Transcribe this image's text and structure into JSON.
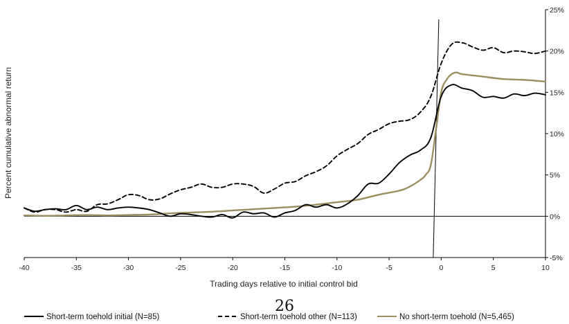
{
  "page_number": "26",
  "chart_data": {
    "type": "line",
    "title": "",
    "xlabel": "Trading days relative to initial control bid",
    "ylabel": "Percent cumulative abnormal return",
    "xlim": [
      -40,
      10
    ],
    "ylim": [
      -5,
      25
    ],
    "x_ticks": [
      -40,
      -35,
      -30,
      -25,
      -20,
      -15,
      -10,
      -5,
      0,
      5,
      10
    ],
    "x_tick_labels": [
      "-40",
      "-35",
      "-30",
      "-25",
      "-20",
      "-15",
      "-10",
      "-5",
      "0",
      "5",
      "10"
    ],
    "y_ticks": [
      -5,
      0,
      5,
      10,
      15,
      20,
      25
    ],
    "y_tick_labels": [
      "-5%",
      "0%",
      "5%",
      "10%",
      "15%",
      "20%",
      "25%"
    ],
    "y_axis_side": "right",
    "grid": false,
    "legend_position": "bottom",
    "event_line_x": -0.5,
    "series": [
      {
        "name": "Short-term toehold initial (N=85)",
        "style": "solid",
        "color": "#000000",
        "points": [
          [
            -40,
            1.0
          ],
          [
            -39,
            0.6
          ],
          [
            -38,
            0.8
          ],
          [
            -37,
            0.9
          ],
          [
            -36,
            0.8
          ],
          [
            -35,
            1.3
          ],
          [
            -34,
            0.8
          ],
          [
            -33,
            1.1
          ],
          [
            -32,
            0.8
          ],
          [
            -31,
            1.0
          ],
          [
            -30,
            1.1
          ],
          [
            -29,
            1.0
          ],
          [
            -28,
            0.8
          ],
          [
            -27,
            0.4
          ],
          [
            -26,
            0.0
          ],
          [
            -25,
            0.3
          ],
          [
            -24,
            0.2
          ],
          [
            -23,
            0.0
          ],
          [
            -22,
            -0.1
          ],
          [
            -21,
            0.2
          ],
          [
            -20,
            -0.2
          ],
          [
            -19,
            0.5
          ],
          [
            -18,
            0.3
          ],
          [
            -17,
            0.4
          ],
          [
            -16,
            -0.1
          ],
          [
            -15,
            0.4
          ],
          [
            -14,
            0.7
          ],
          [
            -13,
            1.4
          ],
          [
            -12,
            1.1
          ],
          [
            -11,
            1.4
          ],
          [
            -10,
            1.0
          ],
          [
            -9,
            1.5
          ],
          [
            -8,
            2.5
          ],
          [
            -7,
            3.9
          ],
          [
            -6,
            4.0
          ],
          [
            -5,
            5.1
          ],
          [
            -4,
            6.5
          ],
          [
            -3,
            7.4
          ],
          [
            -2,
            8.0
          ],
          [
            -1,
            9.5
          ],
          [
            0,
            14.5
          ],
          [
            1,
            15.9
          ],
          [
            2,
            15.5
          ],
          [
            3,
            15.2
          ],
          [
            4,
            14.4
          ],
          [
            5,
            14.5
          ],
          [
            6,
            14.3
          ],
          [
            7,
            14.8
          ],
          [
            8,
            14.6
          ],
          [
            9,
            14.9
          ],
          [
            10,
            14.7
          ]
        ]
      },
      {
        "name": "Short-term toehold other (N=113)",
        "style": "dashed",
        "color": "#000000",
        "points": [
          [
            -40,
            1.0
          ],
          [
            -39,
            0.5
          ],
          [
            -38,
            0.8
          ],
          [
            -37,
            0.8
          ],
          [
            -36,
            0.5
          ],
          [
            -35,
            0.8
          ],
          [
            -34,
            0.6
          ],
          [
            -33,
            1.4
          ],
          [
            -32,
            1.5
          ],
          [
            -31,
            2.0
          ],
          [
            -30,
            2.6
          ],
          [
            -29,
            2.5
          ],
          [
            -28,
            2.0
          ],
          [
            -27,
            2.1
          ],
          [
            -26,
            2.7
          ],
          [
            -25,
            3.2
          ],
          [
            -24,
            3.5
          ],
          [
            -23,
            3.9
          ],
          [
            -22,
            3.5
          ],
          [
            -21,
            3.5
          ],
          [
            -20,
            3.9
          ],
          [
            -19,
            3.9
          ],
          [
            -18,
            3.6
          ],
          [
            -17,
            2.8
          ],
          [
            -16,
            3.3
          ],
          [
            -15,
            4.0
          ],
          [
            -14,
            4.2
          ],
          [
            -13,
            4.9
          ],
          [
            -12,
            5.4
          ],
          [
            -11,
            6.1
          ],
          [
            -10,
            7.3
          ],
          [
            -9,
            8.1
          ],
          [
            -8,
            8.8
          ],
          [
            -7,
            9.9
          ],
          [
            -6,
            10.5
          ],
          [
            -5,
            11.2
          ],
          [
            -4,
            11.5
          ],
          [
            -3,
            11.7
          ],
          [
            -2,
            12.6
          ],
          [
            -1,
            14.5
          ],
          [
            0,
            18.5
          ],
          [
            1,
            20.8
          ],
          [
            2,
            21.0
          ],
          [
            3,
            20.5
          ],
          [
            4,
            20.1
          ],
          [
            5,
            20.4
          ],
          [
            6,
            19.8
          ],
          [
            7,
            20.0
          ],
          [
            8,
            19.9
          ],
          [
            9,
            19.7
          ],
          [
            10,
            20.0
          ]
        ]
      },
      {
        "name": "No short-term toehold (N=5,465)",
        "style": "solid",
        "color": "#9a8f5f",
        "points": [
          [
            -40,
            0.1
          ],
          [
            -38,
            0.05
          ],
          [
            -36,
            0.1
          ],
          [
            -34,
            0.15
          ],
          [
            -32,
            0.1
          ],
          [
            -30,
            0.15
          ],
          [
            -28,
            0.2
          ],
          [
            -26,
            0.35
          ],
          [
            -24,
            0.45
          ],
          [
            -22,
            0.55
          ],
          [
            -20,
            0.7
          ],
          [
            -18,
            0.85
          ],
          [
            -16,
            1.0
          ],
          [
            -14,
            1.15
          ],
          [
            -12,
            1.4
          ],
          [
            -10,
            1.7
          ],
          [
            -8,
            2.0
          ],
          [
            -6,
            2.6
          ],
          [
            -4,
            3.1
          ],
          [
            -3,
            3.6
          ],
          [
            -2,
            4.4
          ],
          [
            -1.5,
            5.0
          ],
          [
            -1,
            6.2
          ],
          [
            -0.5,
            10.5
          ],
          [
            0,
            15.0
          ],
          [
            0.5,
            16.5
          ],
          [
            1,
            17.2
          ],
          [
            1.5,
            17.4
          ],
          [
            2,
            17.2
          ],
          [
            4,
            16.9
          ],
          [
            6,
            16.6
          ],
          [
            8,
            16.5
          ],
          [
            10,
            16.3
          ]
        ]
      }
    ]
  }
}
